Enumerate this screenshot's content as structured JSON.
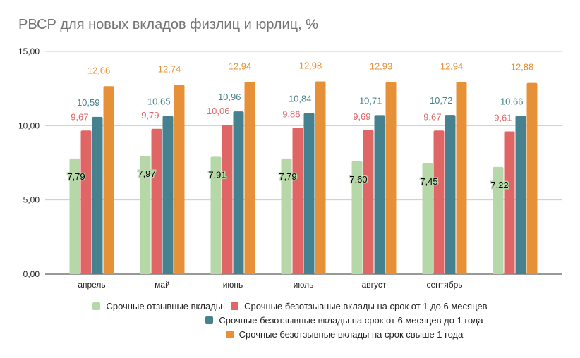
{
  "chart_data": {
    "type": "bar",
    "title": "РВСР для новых вкладов физлиц и юрлиц, %",
    "xlabel": "",
    "ylabel": "",
    "ylim": [
      0,
      15
    ],
    "y_ticks": [
      "0,00",
      "5,00",
      "10,00",
      "15,00"
    ],
    "y_tick_values": [
      0,
      5,
      10,
      15
    ],
    "grid": true,
    "legend_position": "bottom",
    "categories": [
      "апрель",
      "май",
      "июнь",
      "июль",
      "август",
      "сентябрь",
      ""
    ],
    "series": [
      {
        "name": "Срочные отзывные вклады",
        "color": "#b6d7a8",
        "label_color": "#000000",
        "values": [
          7.79,
          7.97,
          7.91,
          7.79,
          7.6,
          7.45,
          7.22
        ],
        "labels": [
          "7,79",
          "7,97",
          "7,91",
          "7,79",
          "7,60",
          "7,45",
          "7,22"
        ]
      },
      {
        "name": "Срочные безотзывные вклады на срок от 1 до 6 месяцев",
        "color": "#e06666",
        "label_color": "#e06666",
        "values": [
          9.67,
          9.79,
          10.06,
          9.86,
          9.69,
          9.67,
          9.61
        ],
        "labels": [
          "9,67",
          "9,79",
          "10,06",
          "9,86",
          "9,69",
          "9,67",
          "9,61"
        ]
      },
      {
        "name": "Срочные безотзывные вклады на срок от 6 месяцев до 1 года",
        "color": "#45818e",
        "label_color": "#45818e",
        "values": [
          10.59,
          10.65,
          10.96,
          10.84,
          10.71,
          10.72,
          10.66
        ],
        "labels": [
          "10,59",
          "10,65",
          "10,96",
          "10,84",
          "10,71",
          "10,72",
          "10,66"
        ]
      },
      {
        "name": "Срочные безотзывные вклады на срок свыше 1 года",
        "color": "#e69138",
        "label_color": "#e69138",
        "values": [
          12.66,
          12.74,
          12.94,
          12.98,
          12.93,
          12.94,
          12.88
        ],
        "labels": [
          "12,66",
          "12,74",
          "12,94",
          "12,98",
          "12,93",
          "12,94",
          "12,88"
        ]
      }
    ]
  }
}
